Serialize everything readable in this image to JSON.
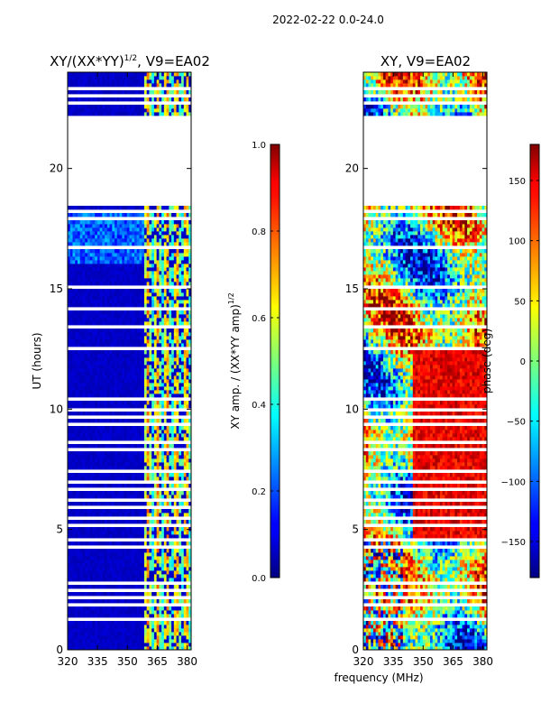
{
  "suptitle": "2022-02-22 0.0-24.0",
  "shared_xlabel": "frequency (MHz)",
  "colors": {
    "background": "#ffffff",
    "missing_data": "#ffffff",
    "axis": "#000000"
  },
  "chart_data": [
    {
      "type": "heatmap",
      "title": "XY/(XX*YY)",
      "title_superscript": "1/2",
      "title_suffix": ", V9=EA02",
      "xlabel": "",
      "ylabel": "UT (hours)",
      "xlim": [
        320,
        382
      ],
      "ylim": [
        0,
        24
      ],
      "x_ticks": [
        320,
        335,
        350,
        365,
        380
      ],
      "y_ticks": [
        0,
        5,
        10,
        15,
        20
      ],
      "colormap": "jet",
      "colorbar": {
        "label": "XY amp. / (XX*YY amp)",
        "label_superscript": "1/2",
        "range": [
          0.0,
          1.0
        ],
        "ticks": [
          0.0,
          0.2,
          0.4,
          0.6,
          0.8,
          1.0
        ],
        "tick_labels": [
          "0.0",
          "0.2",
          "0.4",
          "0.6",
          "0.8",
          "1.0"
        ]
      },
      "missing_time_ranges_hours": [
        [
          18.4,
          22.2
        ]
      ],
      "flagged_time_rows_hours": [
        23.3,
        23.0,
        22.7,
        22.5,
        18.2,
        17.9,
        16.7,
        16.2,
        15.6,
        15.1,
        14.2,
        13.8,
        13.4,
        12.9,
        12.5,
        10.4,
        10.0,
        9.7,
        9.4,
        8.6,
        8.3,
        7.8,
        7.4,
        7.0,
        6.7,
        6.2,
        5.9,
        5.5,
        5.2,
        4.8,
        4.6,
        4.3,
        3.6,
        3.3,
        2.8,
        2.5,
        2.2,
        1.9,
        1.5,
        1.3
      ],
      "notes": "Amplitude ratio mostly ~0.05 (dark blue); elevated ~0.4-0.7 in vertical stripes near 359-382 MHz."
    },
    {
      "type": "heatmap",
      "title": "XY, V9=EA02",
      "xlabel": "",
      "ylabel": "",
      "xlim": [
        320,
        382
      ],
      "ylim": [
        0,
        24
      ],
      "x_ticks": [
        320,
        335,
        350,
        365,
        380
      ],
      "y_ticks": [
        0,
        5,
        10,
        15,
        20
      ],
      "colormap": "jet",
      "colorbar": {
        "label": "phase (deg)",
        "range": [
          -180,
          180
        ],
        "ticks": [
          -150,
          -100,
          -50,
          0,
          50,
          100,
          150
        ],
        "tick_labels": [
          "−150",
          "−100",
          "−50",
          "0",
          "50",
          "100",
          "150"
        ]
      },
      "missing_time_ranges_hours": [
        [
          18.4,
          22.2
        ]
      ],
      "flagged_time_rows_hours": [
        23.3,
        23.0,
        22.7,
        22.5,
        18.2,
        17.9,
        16.7,
        16.2,
        15.6,
        15.1,
        14.2,
        13.8,
        13.4,
        12.9,
        12.5,
        10.4,
        10.0,
        9.7,
        9.4,
        8.6,
        8.3,
        7.8,
        7.4,
        7.0,
        6.7,
        6.2,
        5.9,
        5.5,
        5.2,
        4.8,
        4.6,
        4.3,
        3.6,
        3.3,
        2.8,
        2.5,
        2.2,
        1.9,
        1.5,
        1.3
      ],
      "notes": "Phase varies across full range; large red (~+150 deg) regions 4-12 h at high frequency, noisy mix elsewhere."
    }
  ]
}
